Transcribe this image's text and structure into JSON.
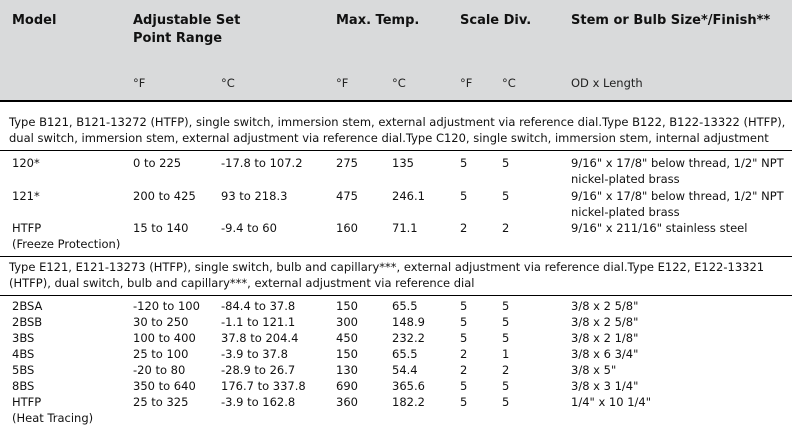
{
  "header": {
    "model": "Model",
    "range_line1": "Adjustable Set",
    "range_line2": "Point Range",
    "max_temp": "Max. Temp.",
    "scale_div": "Scale Div.",
    "stem": "Stem or Bulb Size*/Finish**",
    "units": {
      "range_f": "°F",
      "range_c": "°C",
      "temp_f": "°F",
      "temp_c": "°C",
      "scale_f": "°F",
      "scale_c": "°C",
      "stem": "OD x Length"
    }
  },
  "section1": {
    "title": "Type B121, B121-13272 (HTFP), single switch, immersion stem, external adjustment via reference dial.Type B122, B122-13322 (HTFP), dual switch, immersion stem, external adjustment via reference dial.Type C120, single switch, immersion stem, internal adjustment",
    "rows": [
      {
        "model": "120*",
        "range_f": "0 to 225",
        "range_c": "-17.8 to 107.2",
        "temp_f": "275",
        "temp_c": "135",
        "scale_f": "5",
        "scale_c": "5",
        "stem": "9/16\" x 17/8\" below thread, 1/2\" NPT",
        "stem2": "nickel-plated brass",
        "model2": ""
      },
      {
        "model": "121*",
        "range_f": "200 to 425",
        "range_c": "93 to 218.3",
        "temp_f": "475",
        "temp_c": "246.1",
        "scale_f": "5",
        "scale_c": "5",
        "stem": "9/16\" x 17/8\" below thread, 1/2\" NPT",
        "stem2": "nickel-plated brass",
        "model2": ""
      },
      {
        "model": "HTFP",
        "range_f": "15 to 140",
        "range_c": "-9.4 to 60",
        "temp_f": "160",
        "temp_c": "71.1",
        "scale_f": "2",
        "scale_c": "2",
        "stem": "9/16\" x 211/16\" stainless steel",
        "stem2": "",
        "model2": "(Freeze Protection)"
      }
    ]
  },
  "section2": {
    "title": "Type E121, E121-13273 (HTFP), single switch, bulb and capillary***, external adjustment via reference dial.Type E122, E122-13321 (HTFP), dual switch, bulb and capillary***, external adjustment via reference dial",
    "rows": [
      {
        "model": "2BSA",
        "range_f": "-120 to 100",
        "range_c": "-84.4 to 37.8",
        "temp_f": "150",
        "temp_c": "65.5",
        "scale_f": "5",
        "scale_c": "5",
        "stem": "3/8 x 2 5/8\""
      },
      {
        "model": "2BSB",
        "range_f": "30 to 250",
        "range_c": "-1.1 to 121.1",
        "temp_f": "300",
        "temp_c": "148.9",
        "scale_f": "5",
        "scale_c": "5",
        "stem": "3/8 x 2 5/8\""
      },
      {
        "model": "3BS",
        "range_f": "100 to 400",
        "range_c": "37.8 to 204.4",
        "temp_f": "450",
        "temp_c": "232.2",
        "scale_f": "5",
        "scale_c": "5",
        "stem": "3/8 x 2 1/8\""
      },
      {
        "model": "4BS",
        "range_f": "25 to 100",
        "range_c": "-3.9 to 37.8",
        "temp_f": "150",
        "temp_c": "65.5",
        "scale_f": "2",
        "scale_c": "1",
        "stem": "3/8 x 6 3/4\""
      },
      {
        "model": "5BS",
        "range_f": "-20 to 80",
        "range_c": "-28.9 to 26.7",
        "temp_f": "130",
        "temp_c": "54.4",
        "scale_f": "2",
        "scale_c": "2",
        "stem": "3/8 x 5\""
      },
      {
        "model": "8BS",
        "range_f": "350 to 640",
        "range_c": "176.7 to 337.8",
        "temp_f": "690",
        "temp_c": "365.6",
        "scale_f": "5",
        "scale_c": "5",
        "stem": "3/8 x 3 1/4\""
      },
      {
        "model": "HTFP",
        "range_f": "25 to 325",
        "range_c": "-3.9 to 162.8",
        "temp_f": "360",
        "temp_c": "182.2",
        "scale_f": "5",
        "scale_c": "5",
        "stem": "1/4\" x 10 1/4\""
      }
    ],
    "htfp_note": "(Heat Tracing)"
  }
}
